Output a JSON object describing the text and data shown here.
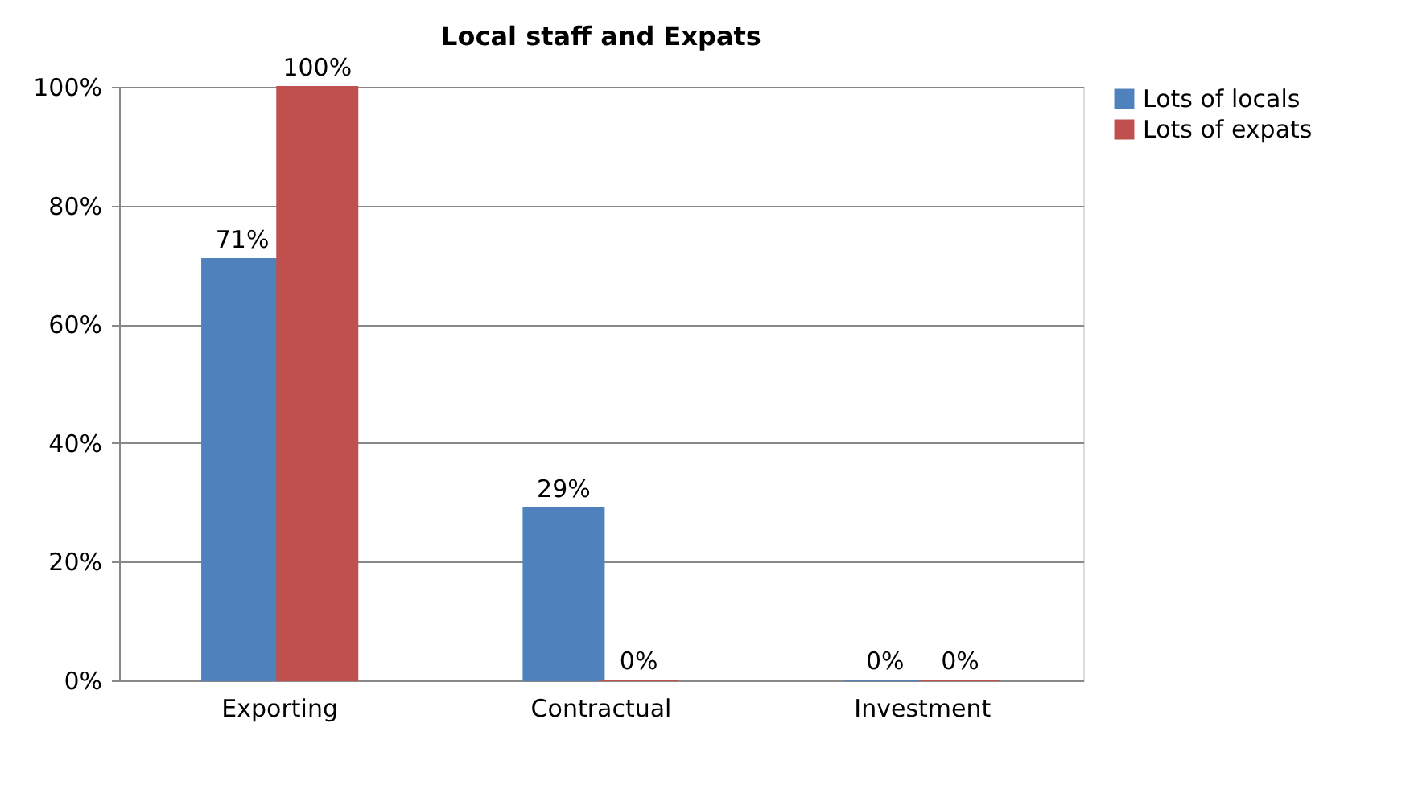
{
  "chart_data": {
    "type": "bar",
    "title": "Local staff and Expats",
    "categories": [
      "Exporting",
      "Contractual",
      "Investment"
    ],
    "series": [
      {
        "name": "Lots of locals",
        "color": "#4f81bd",
        "values": [
          71,
          29,
          0
        ],
        "value_labels": [
          "71%",
          "29%",
          "0%"
        ]
      },
      {
        "name": "Lots of expats",
        "color": "#c0504d",
        "values": [
          100,
          0,
          0
        ],
        "value_labels": [
          "100%",
          "0%",
          "0%"
        ]
      }
    ],
    "ylim": [
      0,
      100
    ],
    "yticks": [
      {
        "value": 0,
        "label": "0%"
      },
      {
        "value": 20,
        "label": "20%"
      },
      {
        "value": 40,
        "label": "40%"
      },
      {
        "value": 60,
        "label": "60%"
      },
      {
        "value": 80,
        "label": "80%"
      },
      {
        "value": 100,
        "label": "100%"
      }
    ],
    "grid": "y",
    "legend": "right"
  }
}
